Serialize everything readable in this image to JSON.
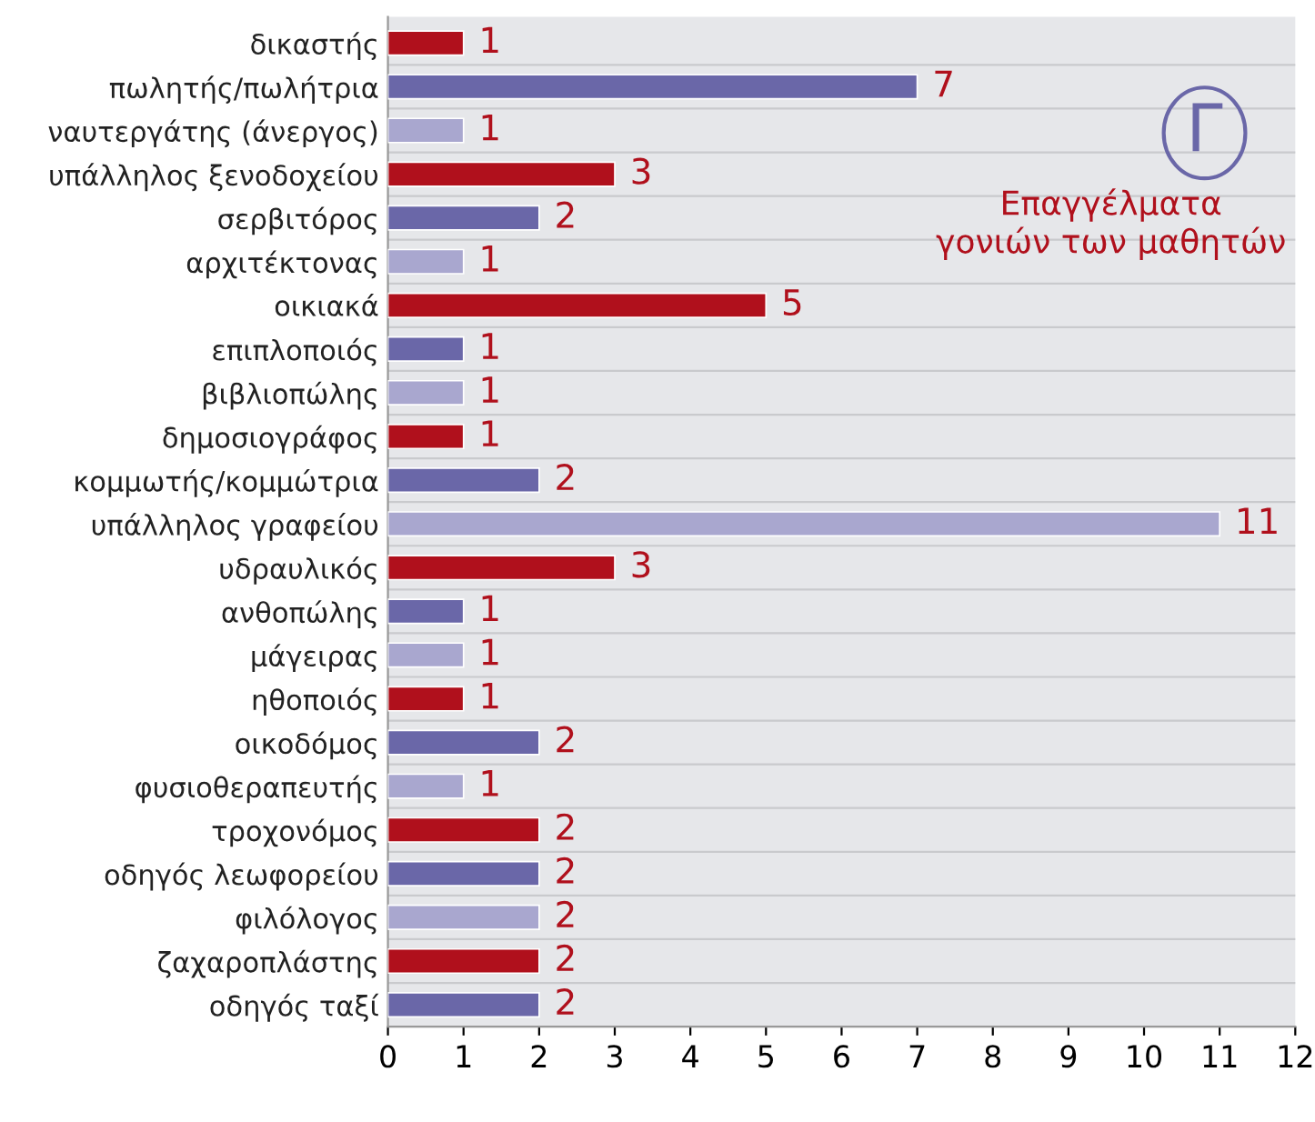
{
  "chart_data": {
    "type": "bar",
    "orientation": "horizontal",
    "title": "Επαγγέλματα\nγονιών των μαθητών",
    "annotations": [
      "Γ"
    ],
    "categories": [
      "δικαστής",
      "πωλητής/πωλήτρια",
      "ναυτεργάτης (άνεργος)",
      "υπάλληλος ξενοδοχείου",
      "σερβιτόρος",
      "αρχιτέκτονας",
      "οικιακά",
      "επιπλοποιός",
      "βιβλιοπώλης",
      "δημοσιογράφος",
      "κομμωτής/κομμώτρια",
      "υπάλληλος γραφείου",
      "υδραυλικός",
      "ανθοπώλης",
      "μάγειρας",
      "ηθοποιός",
      "οικοδόμος",
      "φυσιοθεραπευτής",
      "τροχονόμος",
      "οδηγός λεωφορείου",
      "φιλόλογος",
      "ζαχαροπλάστης",
      "οδηγός ταξί"
    ],
    "values": [
      1,
      7,
      1,
      3,
      2,
      1,
      5,
      1,
      1,
      1,
      2,
      11,
      3,
      1,
      1,
      1,
      2,
      1,
      2,
      2,
      2,
      2,
      2
    ],
    "colors": [
      "#b0101c",
      "#6a67a8",
      "#a9a7cf",
      "#b0101c",
      "#6a67a8",
      "#a9a7cf",
      "#b0101c",
      "#6a67a8",
      "#a9a7cf",
      "#b0101c",
      "#6a67a8",
      "#a9a7cf",
      "#b0101c",
      "#6a67a8",
      "#a9a7cf",
      "#b0101c",
      "#6a67a8",
      "#a9a7cf",
      "#b0101c",
      "#6a67a8",
      "#a9a7cf",
      "#b0101c",
      "#6a67a8"
    ],
    "xlim": [
      0,
      12
    ],
    "xticks": [
      0,
      1,
      2,
      3,
      4,
      5,
      6,
      7,
      8,
      9,
      10,
      11,
      12
    ],
    "data_labels": true,
    "grid": "y"
  }
}
